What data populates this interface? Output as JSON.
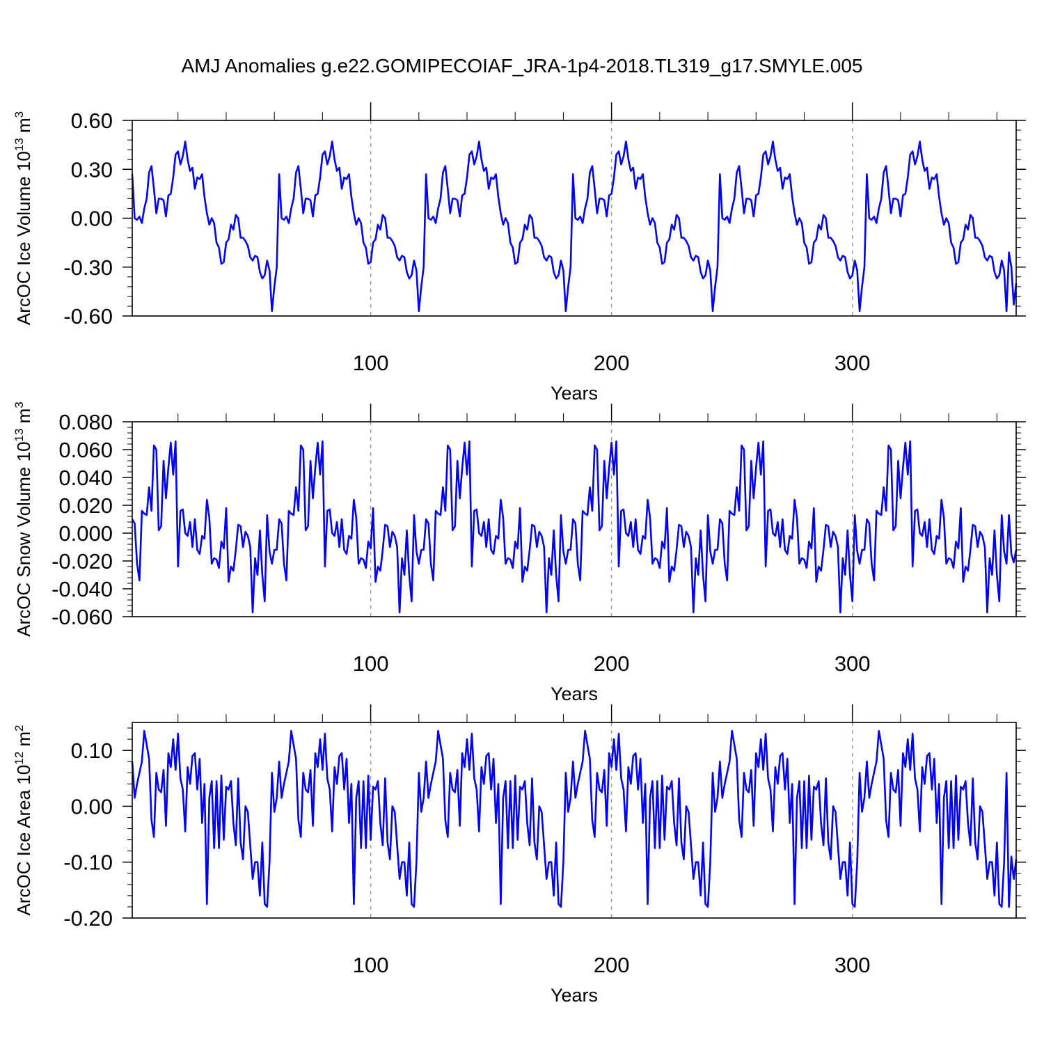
{
  "chart_data": {
    "type": "line",
    "title": "AMJ Anomalies g.e22.GOMIPECOIAF_JRA-1p4-2018.TL319_g17.SMYLE.005",
    "line_color": "#0000ff",
    "grid": "vertical dashed at 100, 200, 300",
    "panels": [
      {
        "ylabel": "ArcOC Ice Volume 10",
        "ylabel_sup": "13",
        "ylabel_unit": "m",
        "ylabel_unit_sup": "3",
        "xlabel": "Years",
        "xlim": [
          1,
          368
        ],
        "ylim": [
          -0.6,
          0.6
        ],
        "yticks": [
          "0.60",
          "0.30",
          "0.00",
          "-0.30",
          "-0.60"
        ],
        "ytick_values": [
          0.6,
          0.3,
          0.0,
          -0.3,
          -0.6
        ],
        "xticks": [
          "100",
          "200",
          "300"
        ],
        "xtick_values": [
          100,
          200,
          300
        ],
        "x_start": 1,
        "cycle_length": 61,
        "cycle": [
          0.27,
          0.0,
          -0.01,
          0.01,
          -0.03,
          0.06,
          0.12,
          0.28,
          0.32,
          0.18,
          0.03,
          0.12,
          0.12,
          0.11,
          0.01,
          0.14,
          0.15,
          0.25,
          0.39,
          0.41,
          0.33,
          0.38,
          0.47,
          0.36,
          0.29,
          0.31,
          0.18,
          0.25,
          0.24,
          0.27,
          0.13,
          0.03,
          -0.04,
          0.0,
          -0.03,
          -0.15,
          -0.18,
          -0.28,
          -0.27,
          -0.15,
          -0.13,
          -0.04,
          -0.07,
          0.02,
          0.0,
          -0.12,
          -0.12,
          -0.14,
          -0.17,
          -0.24,
          -0.26,
          -0.23,
          -0.24,
          -0.33,
          -0.37,
          -0.35,
          -0.26,
          -0.32,
          -0.57,
          -0.42,
          -0.3
        ],
        "last_values": [
          -0.21,
          -0.3,
          -0.53,
          -0.4
        ]
      },
      {
        "ylabel": "ArcOC Snow Volume 10",
        "ylabel_sup": "13",
        "ylabel_unit": "m",
        "ylabel_unit_sup": "3",
        "xlabel": "Years",
        "xlim": [
          1,
          368
        ],
        "ylim": [
          -0.06,
          0.08
        ],
        "yticks": [
          "0.080",
          "0.060",
          "0.040",
          "0.020",
          "0.000",
          "-0.020",
          "-0.040",
          "-0.060"
        ],
        "ytick_values": [
          0.08,
          0.06,
          0.04,
          0.02,
          0.0,
          -0.02,
          -0.04,
          -0.06
        ],
        "xticks": [
          "100",
          "200",
          "300"
        ],
        "xtick_values": [
          100,
          200,
          300
        ],
        "x_start": 1,
        "cycle_length": 61,
        "cycle": [
          0.01,
          0.007,
          -0.022,
          -0.034,
          0.016,
          0.014,
          0.013,
          0.033,
          0.016,
          0.063,
          0.06,
          0.002,
          0.005,
          0.052,
          0.025,
          0.047,
          0.065,
          0.042,
          0.066,
          -0.024,
          0.016,
          0.017,
          0.0,
          -0.002,
          0.008,
          -0.01,
          0.01,
          -0.012,
          -0.015,
          -0.002,
          -0.004,
          0.024,
          0.011,
          -0.022,
          -0.018,
          -0.019,
          -0.025,
          -0.006,
          -0.011,
          0.018,
          -0.035,
          -0.024,
          -0.027,
          -0.012,
          0.006,
          0.005,
          -0.01,
          0.001,
          -0.002,
          -0.01,
          -0.057,
          -0.018,
          -0.03,
          0.002,
          -0.03,
          -0.049,
          0.013,
          -0.013,
          -0.022,
          -0.012,
          -0.012
        ],
        "last_values": [
          0.013,
          -0.015,
          -0.021,
          -0.012
        ]
      },
      {
        "ylabel": "ArcOC Ice Area 10",
        "ylabel_sup": "12",
        "ylabel_unit": "m",
        "ylabel_unit_sup": "2",
        "xlabel": "Years",
        "xlim": [
          1,
          368
        ],
        "ylim": [
          -0.2,
          0.15
        ],
        "yticks": [
          "0.10",
          "0.00",
          "-0.10",
          "-0.20"
        ],
        "ytick_values": [
          0.1,
          0.0,
          -0.1,
          -0.2
        ],
        "xticks": [
          "100",
          "200",
          "300"
        ],
        "xtick_values": [
          100,
          200,
          300
        ],
        "x_start": 1,
        "cycle_length": 61,
        "cycle": [
          0.08,
          0.015,
          0.04,
          0.06,
          0.08,
          0.135,
          0.11,
          0.085,
          -0.025,
          -0.055,
          0.06,
          0.03,
          0.025,
          0.065,
          -0.035,
          0.095,
          0.07,
          0.12,
          0.065,
          0.13,
          0.05,
          0.03,
          -0.045,
          0.07,
          0.04,
          0.09,
          0.095,
          0.03,
          0.085,
          -0.03,
          0.04,
          -0.175,
          0.015,
          0.045,
          -0.075,
          0.045,
          -0.075,
          0.055,
          -0.06,
          0.035,
          0.03,
          0.045,
          -0.03,
          -0.07,
          0.05,
          -0.065,
          -0.095,
          0.0,
          -0.01,
          -0.07,
          -0.13,
          -0.1,
          -0.1,
          -0.16,
          -0.065,
          -0.175,
          -0.18,
          -0.1,
          0.06,
          -0.01,
          0.015
        ],
        "last_values": [
          -0.18,
          -0.09,
          -0.13,
          -0.095
        ]
      }
    ]
  }
}
